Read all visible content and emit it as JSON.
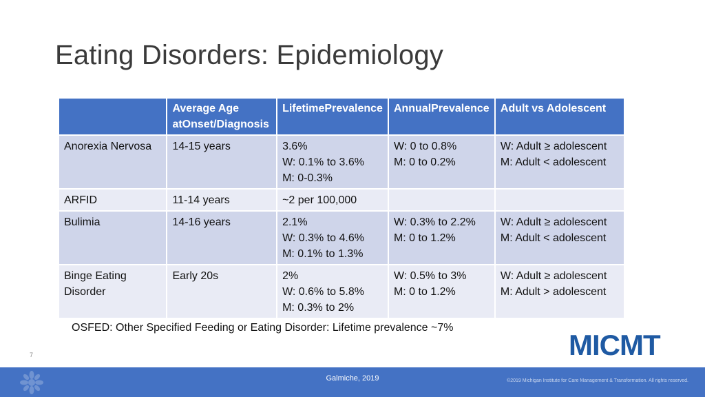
{
  "title": "Eating Disorders: Epidemiology",
  "table": {
    "headers": [
      "",
      [
        "Average  Age at",
        "Onset/Diagnosis"
      ],
      [
        "Lifetime",
        "Prevalence"
      ],
      [
        "Annual",
        "Prevalence"
      ],
      [
        "Adult vs Adolescent"
      ]
    ],
    "rows": [
      {
        "condition": "Anorexia Nervosa",
        "age": "14-15 years",
        "lifetime": [
          "3.6%",
          "W: 0.1% to 3.6%",
          "M: 0-0.3%"
        ],
        "annual": [
          "W: 0 to 0.8%",
          "M: 0 to 0.2%"
        ],
        "adult_vs_adolescent": [
          "W: Adult ≥ adolescent",
          "M: Adult < adolescent"
        ]
      },
      {
        "condition": "ARFID",
        "age": "11-14 years",
        "lifetime": [
          "~2 per 100,000"
        ],
        "annual": [],
        "adult_vs_adolescent": []
      },
      {
        "condition": "Bulimia",
        "age": "14-16 years",
        "lifetime": [
          "2.1%",
          "W: 0.3% to 4.6%",
          "M: 0.1% to 1.3%"
        ],
        "annual": [
          "W: 0.3% to 2.2%",
          "M: 0 to 1.2%"
        ],
        "adult_vs_adolescent": [
          "W: Adult ≥ adolescent",
          "M: Adult < adolescent"
        ]
      },
      {
        "condition": [
          "Binge Eating",
          "Disorder"
        ],
        "age": "Early 20s",
        "lifetime": [
          "2%",
          "W: 0.6% to 5.8%",
          "M: 0.3% to 2%"
        ],
        "annual": [
          "W: 0.5% to 3%",
          "M: 0 to 1.2%"
        ],
        "adult_vs_adolescent": [
          "W: Adult ≥ adolescent",
          "M: Adult > adolescent"
        ]
      }
    ]
  },
  "note": "OSFED: Other Specified Feeding or Eating Disorder: Lifetime prevalence ~7%",
  "page_number": "7",
  "logo_text": "MICMT",
  "footer": {
    "source": "Galmiche, 2019",
    "copyright": "©2019 Michigan Institute for Care Management & Transformation. All rights reserved."
  },
  "colors": {
    "header_bg": "#4472c4",
    "row_dark": "#cfd5ea",
    "row_light": "#e9ebf5",
    "logo": "#1f5aa3"
  }
}
